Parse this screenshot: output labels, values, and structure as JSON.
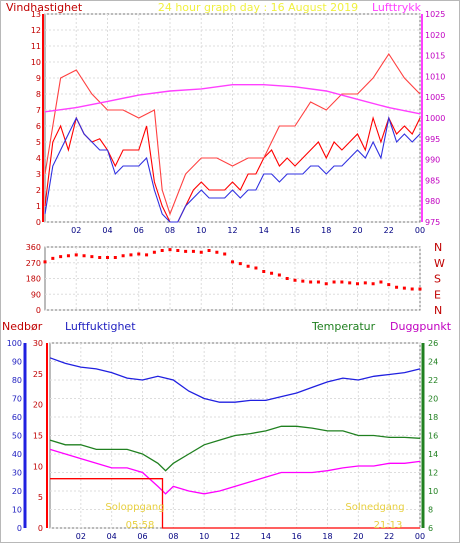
{
  "chart_data": [
    {
      "type": "line",
      "title": "24 hour graph day : 16 August 2019",
      "left_axis_label": "Vindhastighet",
      "right_axis_label": "Lufttrykk",
      "x_ticks": [
        "02",
        "04",
        "06",
        "08",
        "10",
        "12",
        "14",
        "16",
        "18",
        "20",
        "22",
        "00"
      ],
      "x_range": [
        0,
        24
      ],
      "y_left_range": [
        0,
        13
      ],
      "y_left_ticks": [
        "0",
        "1",
        "2",
        "3",
        "4",
        "5",
        "6",
        "7",
        "8",
        "9",
        "10",
        "11",
        "12",
        "13"
      ],
      "y_right_range": [
        975,
        1025
      ],
      "y_right_ticks": [
        "975",
        "980",
        "985",
        "990",
        "995",
        "1000",
        "1005",
        "1010",
        "1015",
        "1020",
        "1025"
      ],
      "grid": true,
      "series": [
        {
          "name": "Vindhastighet",
          "axis": "left",
          "color": "#ff0000",
          "x": [
            0,
            0.5,
            1,
            1.5,
            2,
            2.5,
            3,
            3.5,
            4,
            4.5,
            5,
            5.5,
            6,
            6.5,
            7,
            7.5,
            8,
            8.5,
            9,
            9.5,
            10,
            10.5,
            11,
            11.5,
            12,
            12.5,
            13,
            13.5,
            14,
            14.5,
            15,
            15.5,
            16,
            16.5,
            17,
            17.5,
            18,
            18.5,
            19,
            19.5,
            20,
            20.5,
            21,
            21.5,
            22,
            22.5,
            23,
            23.5,
            24
          ],
          "values": [
            1,
            5,
            6,
            4.5,
            6.5,
            5.5,
            5,
            5.2,
            4.5,
            3.5,
            4.5,
            4.5,
            4.5,
            6,
            2.5,
            1,
            0,
            0,
            1,
            2,
            2.5,
            2,
            2,
            2,
            2.5,
            2,
            3,
            3,
            4,
            4.5,
            3.5,
            4,
            3.5,
            4,
            4.5,
            5,
            4,
            5,
            4.5,
            5,
            5.5,
            4.5,
            6.5,
            5,
            6.5,
            5.5,
            6,
            5.5,
            6.5
          ]
        },
        {
          "name": "Vindkast",
          "axis": "left",
          "color": "#ff4040",
          "x": [
            0,
            1,
            2,
            3,
            4,
            5,
            6,
            7,
            7.5,
            8,
            9,
            10,
            11,
            12,
            13,
            14,
            15,
            16,
            17,
            18,
            19,
            20,
            21,
            22,
            23,
            24
          ],
          "values": [
            3,
            9,
            9.5,
            8,
            7,
            7,
            6.5,
            7,
            2,
            0.5,
            3,
            4,
            4,
            3.5,
            4,
            4,
            6,
            6,
            7.5,
            7,
            8,
            8,
            9,
            10.5,
            9,
            8
          ]
        },
        {
          "name": "Middelvind",
          "axis": "left",
          "color": "#3030e0",
          "x": [
            0,
            0.5,
            1,
            1.5,
            2,
            2.5,
            3,
            3.5,
            4,
            4.5,
            5,
            5.5,
            6,
            6.5,
            7,
            7.5,
            8,
            8.5,
            9,
            9.5,
            10,
            10.5,
            11,
            11.5,
            12,
            12.5,
            13,
            13.5,
            14,
            14.5,
            15,
            15.5,
            16,
            16.5,
            17,
            17.5,
            18,
            18.5,
            19,
            19.5,
            20,
            20.5,
            21,
            21.5,
            22,
            22.5,
            23,
            23.5,
            24
          ],
          "values": [
            0.5,
            3.5,
            4.5,
            5.5,
            6.5,
            5.5,
            5,
            4.5,
            4.5,
            3,
            3.5,
            3.5,
            3.5,
            4,
            2,
            0.5,
            0,
            0,
            1,
            1.5,
            2,
            1.5,
            1.5,
            1.5,
            2,
            1.5,
            2,
            2,
            3,
            3,
            2.5,
            3,
            3,
            3,
            3.5,
            3.5,
            3,
            3.5,
            3.5,
            4,
            4.5,
            4,
            5,
            4,
            6.5,
            5,
            5.5,
            5,
            5.5
          ]
        },
        {
          "name": "Lufttrykk",
          "axis": "right",
          "color": "#ff40ff",
          "x": [
            0,
            2,
            4,
            6,
            8,
            10,
            12,
            14,
            16,
            18,
            20,
            22,
            24
          ],
          "values": [
            1001.5,
            1002.5,
            1004,
            1005.5,
            1006.5,
            1007,
            1008,
            1008,
            1007.5,
            1006.5,
            1004.5,
            1002.5,
            1001
          ]
        }
      ]
    },
    {
      "type": "scatter",
      "title": "",
      "x_ticks": [
        "02",
        "04",
        "06",
        "08",
        "10",
        "12",
        "14",
        "16",
        "18",
        "20",
        "22",
        "00"
      ],
      "x_range": [
        0,
        24
      ],
      "y_range": [
        0,
        360
      ],
      "y_ticks": [
        "0",
        "90",
        "180",
        "270",
        "360"
      ],
      "y_side_labels": [
        "N",
        "W",
        "S",
        "E",
        "N"
      ],
      "grid": true,
      "series": [
        {
          "name": "Vindretning",
          "color": "#ff0000",
          "x": [
            0,
            0.5,
            1,
            1.5,
            2,
            2.5,
            3,
            3.5,
            4,
            4.5,
            5,
            5.5,
            6,
            6.5,
            7,
            7.5,
            8,
            8.5,
            9,
            9.5,
            10,
            10.5,
            11,
            11.5,
            12,
            12.5,
            13,
            13.5,
            14,
            14.5,
            15,
            15.5,
            16,
            16.5,
            17,
            17.5,
            18,
            18.5,
            19,
            19.5,
            20,
            20.5,
            21,
            21.5,
            22,
            22.5,
            23,
            23.5,
            24
          ],
          "values": [
            275,
            295,
            305,
            310,
            315,
            310,
            305,
            300,
            300,
            300,
            310,
            315,
            320,
            315,
            330,
            340,
            345,
            340,
            335,
            335,
            330,
            340,
            330,
            320,
            275,
            265,
            250,
            240,
            220,
            210,
            200,
            180,
            170,
            165,
            160,
            160,
            150,
            160,
            160,
            155,
            150,
            155,
            150,
            160,
            145,
            130,
            125,
            120,
            120
          ]
        }
      ]
    },
    {
      "type": "line",
      "title": "",
      "labels": [
        "Nedbør",
        "Luftfuktighet",
        "Temperatur",
        "Duggpunkt"
      ],
      "x_ticks": [
        "02",
        "04",
        "06",
        "08",
        "10",
        "12",
        "14",
        "16",
        "18",
        "20",
        "22",
        "00"
      ],
      "x_range": [
        0,
        24
      ],
      "y_humidity_range": [
        0,
        100
      ],
      "y_humidity_ticks": [
        "0",
        "10",
        "20",
        "30",
        "40",
        "50",
        "60",
        "70",
        "80",
        "90",
        "100"
      ],
      "y_rain_range": [
        0,
        30
      ],
      "y_rain_ticks": [
        "0",
        "5",
        "10",
        "15",
        "20",
        "25",
        "30"
      ],
      "y_temp_range": [
        6,
        26
      ],
      "y_temp_ticks": [
        "6",
        "8",
        "10",
        "12",
        "14",
        "16",
        "18",
        "20",
        "22",
        "24",
        "26"
      ],
      "grid": true,
      "annotations": [
        "Soloppgang",
        "Solnedgang"
      ],
      "annotation_times": [
        "05:58",
        "21:13"
      ],
      "series": [
        {
          "name": "Luftfuktighet",
          "axis": "humidity",
          "color": "#2020e0",
          "x": [
            0,
            1,
            2,
            3,
            4,
            5,
            6,
            7,
            8,
            9,
            10,
            11,
            12,
            13,
            14,
            15,
            16,
            17,
            18,
            19,
            20,
            21,
            22,
            23,
            24
          ],
          "values": [
            92,
            89,
            87,
            86,
            84,
            81,
            80,
            82,
            80,
            74,
            70,
            68,
            68,
            69,
            69,
            71,
            73,
            76,
            79,
            81,
            80,
            82,
            83,
            84,
            86
          ]
        },
        {
          "name": "Temperatur",
          "axis": "temp",
          "color": "#208020",
          "x": [
            0,
            1,
            2,
            3,
            4,
            5,
            6,
            7,
            7.5,
            8,
            9,
            10,
            11,
            12,
            13,
            14,
            15,
            16,
            17,
            18,
            19,
            20,
            21,
            22,
            23,
            24
          ],
          "values": [
            15.5,
            15,
            15,
            14.5,
            14.5,
            14.5,
            14,
            13,
            12.2,
            13,
            14,
            15,
            15.5,
            16,
            16.2,
            16.5,
            17,
            17,
            16.8,
            16.5,
            16.5,
            16,
            16,
            15.8,
            15.8,
            15.7
          ]
        },
        {
          "name": "Duggpunkt",
          "axis": "temp",
          "color": "#ff00ff",
          "x": [
            0,
            1,
            2,
            3,
            4,
            5,
            6,
            7,
            7.5,
            8,
            9,
            10,
            11,
            12,
            13,
            14,
            15,
            16,
            17,
            18,
            19,
            20,
            21,
            22,
            23,
            24
          ],
          "values": [
            14.5,
            14,
            13.5,
            13,
            12.5,
            12.5,
            12,
            10.5,
            9.7,
            10.5,
            10,
            9.7,
            10,
            10.5,
            11,
            11.5,
            12,
            12,
            12,
            12.2,
            12.5,
            12.7,
            12.7,
            13,
            13,
            13.2
          ]
        },
        {
          "name": "Nedbør",
          "axis": "rain",
          "color": "#ff0000",
          "x": [
            0,
            7.3,
            7.3,
            24
          ],
          "values": [
            8,
            8,
            0,
            0
          ]
        }
      ]
    }
  ]
}
